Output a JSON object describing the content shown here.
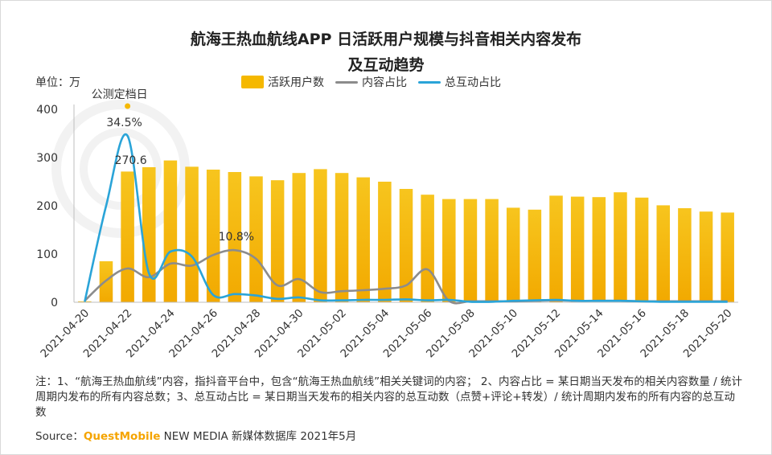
{
  "title_line1": "航海王热血航线APP 日活跃用户规模与抖音相关内容发布",
  "title_line2": "及互动趋势",
  "unit_label": "单位：万",
  "legend": [
    {
      "label": "活跃用户数",
      "kind": "bar",
      "color": "#f5b800"
    },
    {
      "label": "内容占比",
      "kind": "line",
      "color": "#8c8c8c"
    },
    {
      "label": "总互动占比",
      "kind": "line",
      "color": "#2aa4d8"
    }
  ],
  "chart_data": {
    "type": "bar",
    "title": "航海王热血航线APP 日活跃用户规模与抖音相关内容发布及互动趋势",
    "ylabel": "单位：万",
    "ylim": [
      0,
      400
    ],
    "y_ticks": [
      "0",
      "100",
      "200",
      "300",
      "400"
    ],
    "grid": false,
    "legend_position": "top",
    "categories": [
      "2021-04-20",
      "2021-04-21",
      "2021-04-22",
      "2021-04-23",
      "2021-04-24",
      "2021-04-25",
      "2021-04-26",
      "2021-04-27",
      "2021-04-28",
      "2021-04-29",
      "2021-04-30",
      "2021-05-01",
      "2021-05-02",
      "2021-05-03",
      "2021-05-04",
      "2021-05-05",
      "2021-05-06",
      "2021-05-07",
      "2021-05-08",
      "2021-05-09",
      "2021-05-10",
      "2021-05-11",
      "2021-05-12",
      "2021-05-13",
      "2021-05-14",
      "2021-05-15",
      "2021-05-16",
      "2021-05-17",
      "2021-05-18",
      "2021-05-19",
      "2021-05-20"
    ],
    "x_tick_labels": [
      "2021-04-20",
      "2021-04-22",
      "2021-04-24",
      "2021-04-26",
      "2021-04-28",
      "2021-04-30",
      "2021-05-02",
      "2021-05-04",
      "2021-05-06",
      "2021-05-08",
      "2021-05-10",
      "2021-05-12",
      "2021-05-14",
      "2021-05-16",
      "2021-05-18",
      "2021-05-20"
    ],
    "series": [
      {
        "name": "活跃用户数",
        "type": "bar",
        "color": "#f5b800",
        "values": [
          2,
          85,
          271,
          280,
          294,
          281,
          275,
          270,
          261,
          253,
          268,
          276,
          268,
          259,
          250,
          235,
          223,
          214,
          214,
          214,
          196,
          192,
          221,
          219,
          218,
          228,
          217,
          201,
          195,
          188,
          186
        ]
      },
      {
        "name": "内容占比",
        "type": "line",
        "color": "#8c8c8c",
        "values": [
          0.3,
          4.5,
          7.0,
          5.2,
          8.0,
          7.6,
          9.8,
          10.8,
          9.0,
          3.5,
          4.8,
          2.1,
          2.3,
          2.5,
          2.8,
          3.5,
          6.8,
          0.3,
          0.2,
          0.2,
          0.2,
          0.3,
          0.4,
          0.3,
          0.3,
          0.3,
          0.2,
          0.2,
          0.2,
          0.2,
          0.2
        ]
      },
      {
        "name": "总互动占比",
        "type": "line",
        "color": "#2aa4d8",
        "values": [
          0.1,
          20.0,
          34.5,
          6.0,
          10.5,
          9.5,
          1.5,
          1.7,
          1.4,
          0.7,
          1.0,
          0.4,
          0.4,
          0.5,
          0.5,
          0.6,
          0.4,
          0.5,
          0.1,
          0.1,
          0.3,
          0.4,
          0.5,
          0.3,
          0.3,
          0.3,
          0.2,
          0.1,
          0.1,
          0.1,
          0.1
        ]
      }
    ],
    "annotations": {
      "launch_label": "公测定档日",
      "peak_interaction_label": "34.5%",
      "peak_bar_label": "270.6",
      "peak_content_label": "10.8%"
    }
  },
  "note": "注：1、“航海王热血航线”内容，指抖音平台中，包含“航海王热血航线”相关关键词的内容；  2、内容占比 = 某日期当天发布的相关内容数量 / 统计周期内发布的所有内容总数；3、总互动占比 = 某日期当天发布的相关内容的总互动数（点赞+评论+转发）/ 统计周期内发布的所有内容的总互动数",
  "source_prefix": "Source：",
  "source_brand": "QuestMobile",
  "source_suffix": " NEW MEDIA 新媒体数据库 2021年5月"
}
